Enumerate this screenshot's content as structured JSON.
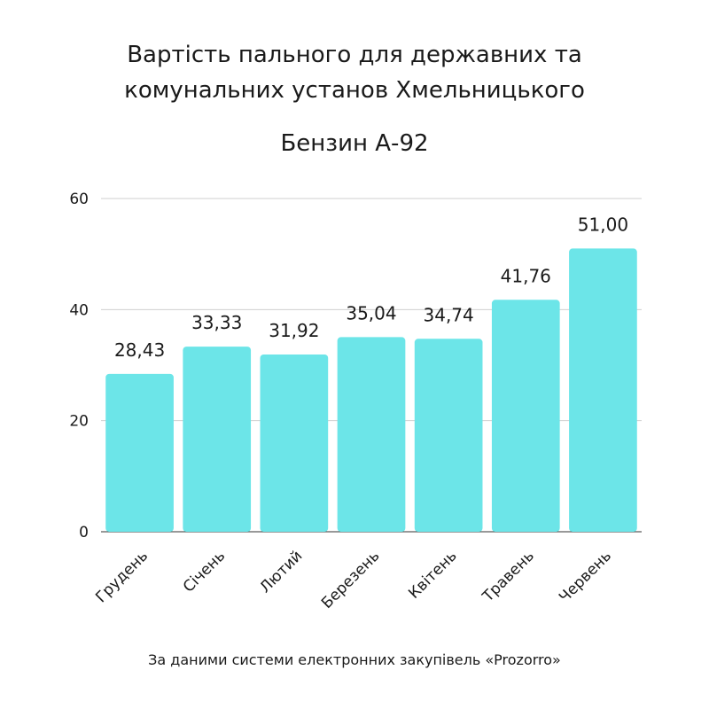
{
  "chart_data": {
    "type": "bar",
    "title": [
      "Вартість пального для державних та",
      "комунальних установ Хмельницького"
    ],
    "subtitle": "Бензин А-92",
    "categories": [
      "Грудень",
      "Січень",
      "Лютий",
      "Березень",
      "Квітень",
      "Травень",
      "Червень"
    ],
    "values": [
      28.43,
      33.33,
      31.92,
      35.04,
      34.74,
      41.76,
      51.0
    ],
    "value_labels": [
      "28,43",
      "33,33",
      "31,92",
      "35,04",
      "34,74",
      "41,76",
      "51,00"
    ],
    "ylim": [
      0,
      60
    ],
    "yticks": [
      0,
      20,
      40,
      60
    ],
    "grid": true,
    "bar_color": "#6ce5e8"
  },
  "footer": {
    "source": "За даними системи електронних закупівель «Prozorro»"
  }
}
